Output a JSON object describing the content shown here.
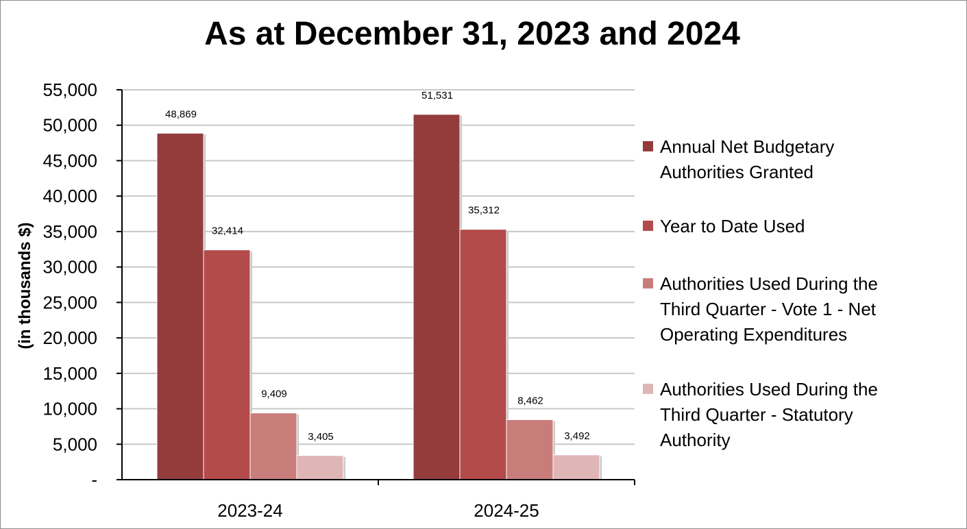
{
  "chart_data": {
    "type": "bar",
    "title": "As at December 31, 2023 and 2024",
    "ylabel": "(in thousands $)",
    "xlabel": "",
    "categories": [
      "2023-24",
      "2024-25"
    ],
    "ylim": [
      0,
      55000
    ],
    "yticks": [
      "-",
      "5,000",
      "10,000",
      "15,000",
      "20,000",
      "25,000",
      "30,000",
      "35,000",
      "40,000",
      "45,000",
      "50,000",
      "55,000"
    ],
    "grid": true,
    "legend_position": "right",
    "series": [
      {
        "name": "Annual Net Budgetary Authorities Granted",
        "values": [
          48869,
          51531
        ],
        "labels": [
          "48,869",
          "51,531"
        ],
        "color": "#943c3c"
      },
      {
        "name": "Year to Date Used",
        "values": [
          32414,
          35312
        ],
        "labels": [
          "32,414",
          "35,312"
        ],
        "color": "#b34b4a"
      },
      {
        "name": "Authorities Used During the Third Quarter - Vote 1 - Net Operating Expenditures",
        "values": [
          9409,
          8462
        ],
        "labels": [
          "9,409",
          "8,462"
        ],
        "color": "#c97d7b"
      },
      {
        "name": "Authorities Used During the Third Quarter  - Statutory Authority",
        "values": [
          3405,
          3492
        ],
        "labels": [
          "3,405",
          "3,492"
        ],
        "color": "#e0b5b5"
      }
    ]
  }
}
